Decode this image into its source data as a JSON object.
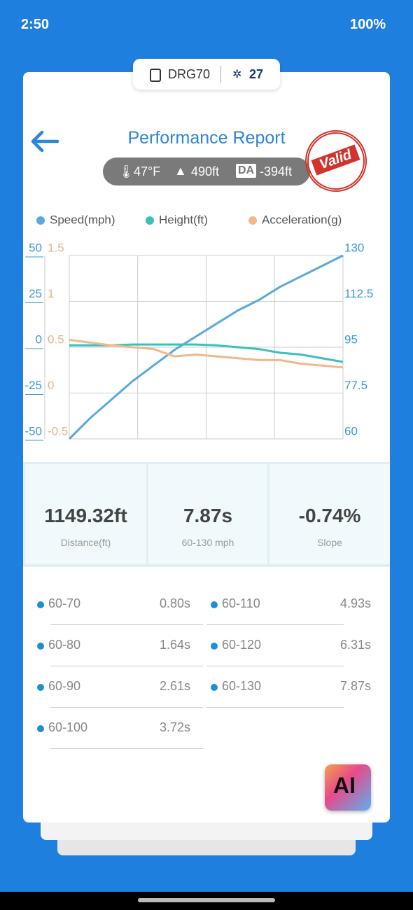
{
  "status_bar": {
    "time": "2:50",
    "battery": "100%"
  },
  "device": {
    "name": "DRG70",
    "satellites": "27"
  },
  "title": "Performance Report",
  "conditions": {
    "temperature": "47°F",
    "altitude": "490ft",
    "da_label": "DA",
    "density_altitude": "-394ft"
  },
  "stamp": "Valid",
  "chart_data": {
    "type": "line",
    "series": [
      {
        "name": "Speed(mph)",
        "color": "#5aa8e0",
        "axis": "y2",
        "values": [
          60,
          68,
          75,
          82,
          88,
          94,
          99,
          104,
          109,
          113,
          118,
          122,
          126,
          130
        ]
      },
      {
        "name": "Height(ft)",
        "color": "#3cc0b8",
        "axis": "y",
        "values": [
          1,
          1,
          1,
          1.5,
          1.5,
          1.5,
          1.5,
          1,
          0,
          -1,
          -3,
          -4,
          -6,
          -8
        ]
      },
      {
        "name": "Acceleration(g)",
        "color": "#f2b88a",
        "axis": "y3",
        "values": [
          0.58,
          0.55,
          0.52,
          0.5,
          0.48,
          0.4,
          0.42,
          0.4,
          0.38,
          0.36,
          0.36,
          0.32,
          0.3,
          0.28
        ]
      }
    ],
    "ylim": [
      -50,
      50
    ],
    "yticks": [
      50,
      25,
      0,
      -25,
      -50
    ],
    "ycolor": "#3a9ad9",
    "y3lim": [
      -0.5,
      1.5
    ],
    "y3ticks": [
      1.5,
      1,
      0.5,
      0,
      -0.5
    ],
    "y3color": "#e8b48a",
    "y2lim": [
      60,
      130
    ],
    "y2ticks": [
      130,
      112.5,
      95,
      77.5,
      60
    ],
    "y2color": "#3a9ad9",
    "grid": true
  },
  "stats": [
    {
      "value": "1149.32ft",
      "label": "Distance(ft)"
    },
    {
      "value": "7.87s",
      "label": "60-130 mph"
    },
    {
      "value": "-0.74%",
      "label": "Slope"
    }
  ],
  "splits": [
    {
      "range": "60-70",
      "time": "0.80s"
    },
    {
      "range": "60-80",
      "time": "1.64s"
    },
    {
      "range": "60-90",
      "time": "2.61s"
    },
    {
      "range": "60-100",
      "time": "3.72s"
    },
    {
      "range": "60-110",
      "time": "4.93s"
    },
    {
      "range": "60-120",
      "time": "6.31s"
    },
    {
      "range": "60-130",
      "time": "7.87s"
    }
  ],
  "ai_button": "AI"
}
